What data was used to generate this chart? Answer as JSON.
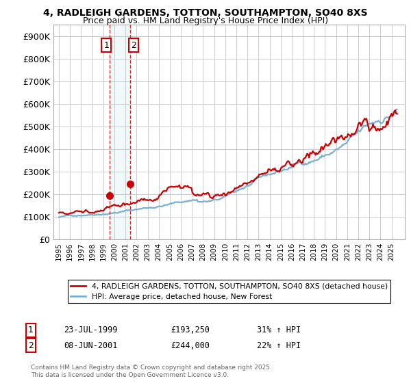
{
  "title_line1": "4, RADLEIGH GARDENS, TOTTON, SOUTHAMPTON, SO40 8XS",
  "title_line2": "Price paid vs. HM Land Registry's House Price Index (HPI)",
  "background_color": "#ffffff",
  "plot_bg_color": "#ffffff",
  "grid_color": "#cccccc",
  "red_line_color": "#cc0000",
  "blue_line_color": "#7ab0d4",
  "yticks": [
    0,
    100000,
    200000,
    300000,
    400000,
    500000,
    600000,
    700000,
    800000,
    900000
  ],
  "ytick_labels": [
    "£0",
    "£100K",
    "£200K",
    "£300K",
    "£400K",
    "£500K",
    "£600K",
    "£700K",
    "£800K",
    "£900K"
  ],
  "transaction1_date": "23-JUL-1999",
  "transaction1_price": "£193,250",
  "transaction1_hpi": "31% ↑ HPI",
  "transaction2_date": "08-JUN-2001",
  "transaction2_price": "£244,000",
  "transaction2_hpi": "22% ↑ HPI",
  "legend_red_label": "4, RADLEIGH GARDENS, TOTTON, SOUTHAMPTON, SO40 8XS (detached house)",
  "legend_blue_label": "HPI: Average price, detached house, New Forest",
  "footer": "Contains HM Land Registry data © Crown copyright and database right 2025.\nThis data is licensed under the Open Government Licence v3.0.",
  "marker1_year": 1999.55,
  "marker1_value": 193250,
  "marker2_year": 2001.44,
  "marker2_value": 244000
}
